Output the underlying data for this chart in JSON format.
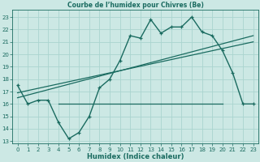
{
  "title": "Courbe de l’humidex pour Chivres (Be)",
  "xlabel": "Humidex (Indice chaleur)",
  "bg_color": "#cce8e4",
  "grid_color": "#aad4cf",
  "line_color": "#1a6b60",
  "xlim": [
    -0.5,
    23.5
  ],
  "ylim": [
    12.8,
    23.6
  ],
  "yticks": [
    13,
    14,
    15,
    16,
    17,
    18,
    19,
    20,
    21,
    22,
    23
  ],
  "xticks": [
    0,
    1,
    2,
    3,
    4,
    5,
    6,
    7,
    8,
    9,
    10,
    11,
    12,
    13,
    14,
    15,
    16,
    17,
    18,
    19,
    20,
    21,
    22,
    23
  ],
  "main_x": [
    0,
    1,
    2,
    3,
    4,
    5,
    6,
    7,
    8,
    9,
    10,
    11,
    12,
    13,
    14,
    15,
    16,
    17,
    18,
    19,
    20,
    21,
    22,
    23
  ],
  "main_y": [
    17.5,
    16.0,
    16.3,
    16.3,
    14.5,
    13.2,
    13.7,
    15.0,
    17.3,
    18.0,
    19.5,
    21.5,
    21.3,
    22.8,
    21.7,
    22.2,
    22.2,
    23.0,
    21.8,
    21.5,
    20.3,
    18.5,
    16.0,
    16.0
  ],
  "flat_x_start": 4,
  "flat_x_end": 20,
  "flat_y": 16.0,
  "reg1_y_start": 16.5,
  "reg1_y_end": 21.5,
  "reg2_y_start": 16.9,
  "reg2_y_end": 21.0,
  "title_fontsize": 5.5,
  "xlabel_fontsize": 6.0,
  "tick_fontsize": 5.0
}
